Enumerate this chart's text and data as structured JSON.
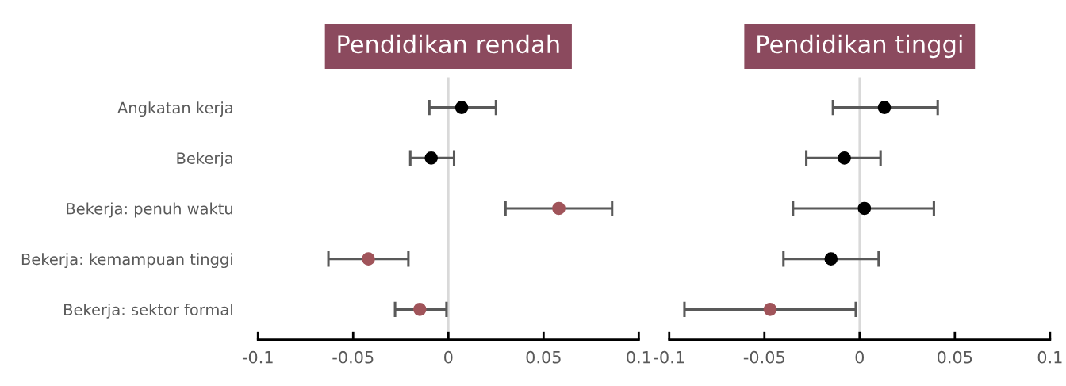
{
  "chart_data": [
    {
      "type": "scatter",
      "orientation": "horizontal",
      "title": "Pendidikan rendah",
      "categories": [
        "Angkatan kerja",
        "Bekerja",
        "Bekerja: penuh waktu",
        "Bekerja: kemampuan tinggi",
        "Bekerja: sektor formal"
      ],
      "values": [
        0.007,
        -0.009,
        0.058,
        -0.042,
        -0.015
      ],
      "errors": [
        [
          -0.01,
          0.025
        ],
        [
          -0.02,
          0.003
        ],
        [
          0.03,
          0.086
        ],
        [
          -0.063,
          -0.021
        ],
        [
          -0.028,
          -0.001
        ]
      ],
      "colors": [
        "#000000",
        "#000000",
        "#a0545a",
        "#a0545a",
        "#a0545a"
      ],
      "xlim": [
        -0.1,
        0.1
      ],
      "xticks": [
        -0.1,
        -0.05,
        0,
        0.05,
        0.1
      ],
      "ref_lines": [
        {
          "axis": "x",
          "value": 0,
          "color": "#d9d9d9"
        }
      ],
      "marker": "circle",
      "grid": false,
      "legend": false
    },
    {
      "type": "scatter",
      "orientation": "horizontal",
      "title": "Pendidikan tinggi",
      "categories": [
        null,
        null,
        null,
        null,
        null
      ],
      "values": [
        0.013,
        -0.008,
        0.0025,
        -0.015,
        -0.047
      ],
      "errors": [
        [
          -0.014,
          0.041
        ],
        [
          -0.028,
          0.011
        ],
        [
          -0.035,
          0.039
        ],
        [
          -0.04,
          0.01
        ],
        [
          -0.092,
          -0.002
        ]
      ],
      "colors": [
        "#000000",
        "#000000",
        "#000000",
        "#000000",
        "#a0545a"
      ],
      "xlim": [
        -0.1,
        0.1
      ],
      "xticks": [
        -0.1,
        -0.05,
        0,
        0.05,
        0.1
      ],
      "ref_lines": [
        {
          "axis": "x",
          "value": 0,
          "color": "#d9d9d9"
        }
      ],
      "marker": "circle",
      "grid": false,
      "legend": false,
      "tick_labels": "x"
    }
  ]
}
